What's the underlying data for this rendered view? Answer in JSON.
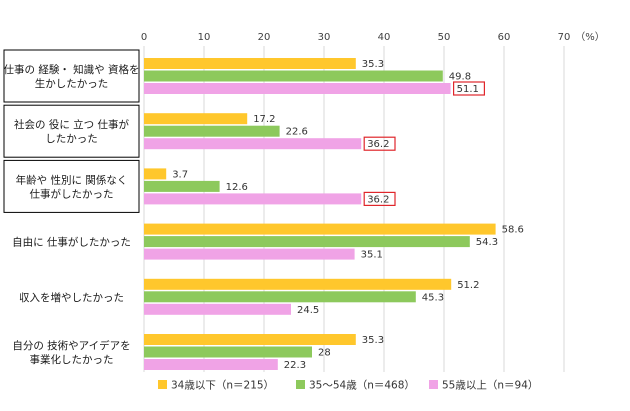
{
  "chart_data": {
    "type": "bar",
    "orientation": "horizontal",
    "unit": "（%）",
    "xlim": [
      0,
      70
    ],
    "ticks": [
      "0",
      "10",
      "20",
      "30",
      "40",
      "50",
      "60",
      "70"
    ],
    "grid": true,
    "legend_position": "bottom",
    "categories": [
      {
        "lines": [
          "仕事の 経験・ 知識や 資格を",
          "生かしたかった"
        ],
        "boxed": true
      },
      {
        "lines": [
          "社会の 役に 立つ 仕事が",
          "したかった"
        ],
        "boxed": true
      },
      {
        "lines": [
          "年齢や 性別に 関係なく",
          "仕事がしたかった"
        ],
        "boxed": true
      },
      {
        "lines": [
          "自由に 仕事がしたかった"
        ],
        "boxed": false
      },
      {
        "lines": [
          "収入を増やしたかった"
        ],
        "boxed": false
      },
      {
        "lines": [
          "自分の 技術やアイデアを",
          "事業化したかった"
        ],
        "boxed": false
      }
    ],
    "series": [
      {
        "name": "34歳以下（n＝215）",
        "color": "#FFC72C",
        "values": [
          35.3,
          17.2,
          3.7,
          58.6,
          51.2,
          35.3
        ],
        "labels": [
          "35.3",
          "17.2",
          "3.7",
          "58.6",
          "51.2",
          "35.3"
        ]
      },
      {
        "name": "35〜54歳（n＝468）",
        "color": "#8DC95C",
        "values": [
          49.8,
          22.6,
          12.6,
          54.3,
          45.3,
          28
        ],
        "labels": [
          "49.8",
          "22.6",
          "12.6",
          "54.3",
          "45.3",
          "28"
        ]
      },
      {
        "name": "55歳以上（n＝94）",
        "color": "#F0A3E6",
        "values": [
          51.1,
          36.2,
          36.2,
          35.1,
          24.5,
          22.3
        ],
        "labels": [
          "51.1",
          "36.2",
          "36.2",
          "35.1",
          "24.5",
          "22.3"
        ]
      }
    ],
    "highlighted": [
      {
        "series": 2,
        "category": 0
      },
      {
        "series": 2,
        "category": 1
      },
      {
        "series": 2,
        "category": 2
      }
    ],
    "highlight_color": "#E0262B"
  }
}
